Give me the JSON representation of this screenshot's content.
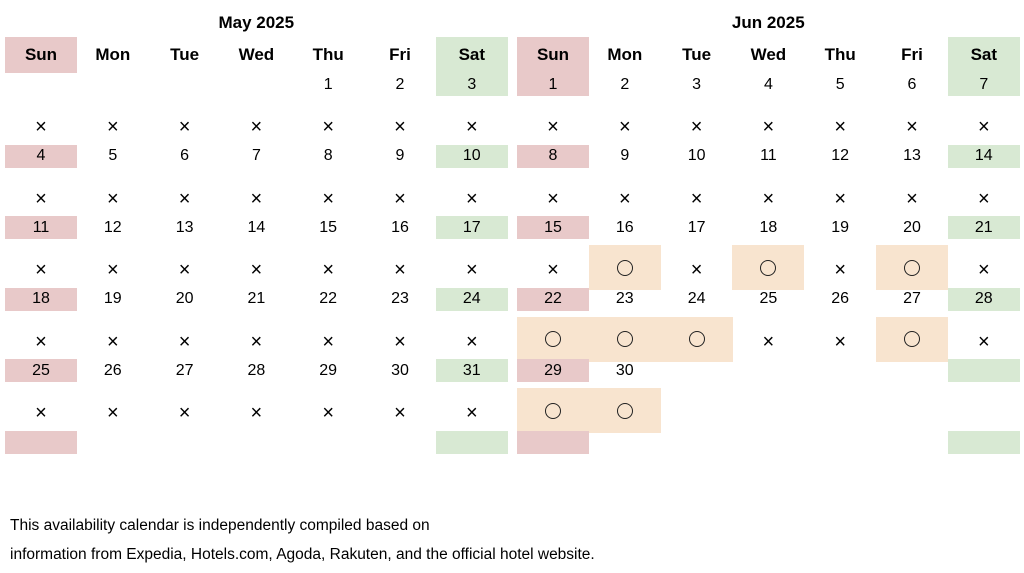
{
  "weekday_labels": [
    "Sun",
    "Mon",
    "Tue",
    "Wed",
    "Thu",
    "Fri",
    "Sat"
  ],
  "status_legend": {
    "unavailable": "×",
    "available": "circle-icon"
  },
  "colors": {
    "sunday_bg": "#e8c9c9",
    "saturday_bg": "#d8e9d3",
    "available_bg": "#f8e4cf"
  },
  "months": [
    {
      "title": "May 2025",
      "weeks": [
        {
          "days": [
            "",
            "",
            "",
            "",
            "1",
            "2",
            "3"
          ],
          "status": [
            "x",
            "x",
            "x",
            "x",
            "x",
            "x",
            "x"
          ]
        },
        {
          "days": [
            "4",
            "5",
            "6",
            "7",
            "8",
            "9",
            "10"
          ],
          "status": [
            "x",
            "x",
            "x",
            "x",
            "x",
            "x",
            "x"
          ]
        },
        {
          "days": [
            "11",
            "12",
            "13",
            "14",
            "15",
            "16",
            "17"
          ],
          "status": [
            "x",
            "x",
            "x",
            "x",
            "x",
            "x",
            "x"
          ]
        },
        {
          "days": [
            "18",
            "19",
            "20",
            "21",
            "22",
            "23",
            "24"
          ],
          "status": [
            "x",
            "x",
            "x",
            "x",
            "x",
            "x",
            "x"
          ]
        },
        {
          "days": [
            "25",
            "26",
            "27",
            "28",
            "29",
            "30",
            "31"
          ],
          "status": [
            "x",
            "x",
            "x",
            "x",
            "x",
            "x",
            "x"
          ]
        },
        {
          "days": [
            "",
            "",
            "",
            "",
            "",
            "",
            ""
          ],
          "status": [
            "",
            "",
            "",
            "",
            "",
            "",
            ""
          ]
        }
      ]
    },
    {
      "title": "Jun 2025",
      "weeks": [
        {
          "days": [
            "1",
            "2",
            "3",
            "4",
            "5",
            "6",
            "7"
          ],
          "status": [
            "x",
            "x",
            "x",
            "x",
            "x",
            "x",
            "x"
          ]
        },
        {
          "days": [
            "8",
            "9",
            "10",
            "11",
            "12",
            "13",
            "14"
          ],
          "status": [
            "x",
            "x",
            "x",
            "x",
            "x",
            "x",
            "x"
          ]
        },
        {
          "days": [
            "15",
            "16",
            "17",
            "18",
            "19",
            "20",
            "21"
          ],
          "status": [
            "x",
            "o",
            "x",
            "o",
            "x",
            "o",
            "x"
          ]
        },
        {
          "days": [
            "22",
            "23",
            "24",
            "25",
            "26",
            "27",
            "28"
          ],
          "status": [
            "o",
            "o",
            "o",
            "x",
            "x",
            "o",
            "x"
          ]
        },
        {
          "days": [
            "29",
            "30",
            "",
            "",
            "",
            "",
            ""
          ],
          "status": [
            "o",
            "o",
            "",
            "",
            "",
            "",
            ""
          ]
        },
        {
          "days": [
            "",
            "",
            "",
            "",
            "",
            "",
            ""
          ],
          "status": [
            "",
            "",
            "",
            "",
            "",
            "",
            ""
          ]
        }
      ]
    }
  ],
  "footer": {
    "line1": "This availability calendar is independently compiled based on",
    "line2": "information from Expedia, Hotels.com, Agoda, Rakuten, and the official hotel website."
  }
}
